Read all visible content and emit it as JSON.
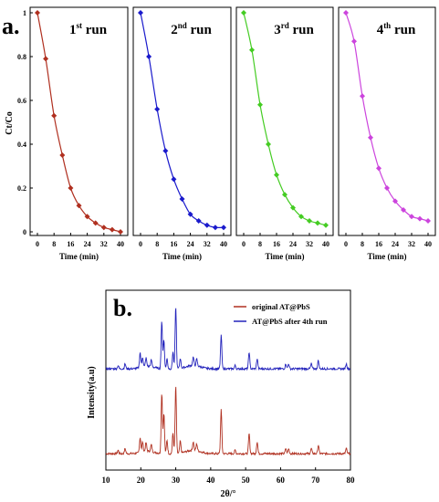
{
  "panel_a": {
    "letter": "a.",
    "ylabel": "Ct/Co",
    "xlabel": "Time (min)"
  },
  "panel_b": {
    "letter": "b.",
    "ylabel": "Intensity(a.u)",
    "xlabel": "2θ/°"
  },
  "colors": {
    "run1": "#b03020",
    "run2": "#1a1acc",
    "run3": "#44cc22",
    "run4": "#cc44dd",
    "xrd_original": "#b03020",
    "xrd_after": "#2222bb"
  },
  "chart_data": [
    {
      "type": "line",
      "title": "1st run",
      "xlabel": "Time (min)",
      "ylabel": "Ct/Co",
      "x": [
        0,
        4,
        8,
        12,
        16,
        20,
        24,
        28,
        32,
        36,
        40
      ],
      "series": [
        {
          "values": [
            1.0,
            0.79,
            0.53,
            0.35,
            0.2,
            0.12,
            0.07,
            0.04,
            0.02,
            0.01,
            0.0
          ]
        }
      ],
      "xticks": [
        0,
        8,
        16,
        24,
        32,
        40
      ],
      "yticks": [
        0,
        0.2,
        0.4,
        0.6,
        0.8,
        1
      ],
      "xlim": [
        0,
        40
      ],
      "ylim": [
        0,
        1
      ]
    },
    {
      "type": "line",
      "title": "2nd run",
      "xlabel": "Time (min)",
      "x": [
        0,
        4,
        8,
        12,
        16,
        20,
        24,
        28,
        32,
        36,
        40
      ],
      "series": [
        {
          "values": [
            1.0,
            0.8,
            0.56,
            0.37,
            0.24,
            0.15,
            0.08,
            0.05,
            0.03,
            0.02,
            0.02
          ]
        }
      ],
      "xticks": [
        0,
        8,
        16,
        24,
        32,
        40
      ],
      "xlim": [
        0,
        40
      ],
      "ylim": [
        0,
        1
      ]
    },
    {
      "type": "line",
      "title": "3rd run",
      "xlabel": "Time (min)",
      "x": [
        0,
        4,
        8,
        12,
        16,
        20,
        24,
        28,
        32,
        36,
        40
      ],
      "series": [
        {
          "values": [
            1.0,
            0.83,
            0.58,
            0.4,
            0.26,
            0.17,
            0.11,
            0.07,
            0.05,
            0.04,
            0.03
          ]
        }
      ],
      "xticks": [
        0,
        8,
        16,
        24,
        32,
        40
      ],
      "xlim": [
        0,
        40
      ],
      "ylim": [
        0,
        1
      ]
    },
    {
      "type": "line",
      "title": "4th run",
      "xlabel": "Time (min)",
      "x": [
        0,
        4,
        8,
        12,
        16,
        20,
        24,
        28,
        32,
        36,
        40
      ],
      "series": [
        {
          "values": [
            1.0,
            0.87,
            0.62,
            0.43,
            0.29,
            0.2,
            0.14,
            0.1,
            0.07,
            0.06,
            0.05
          ]
        }
      ],
      "xticks": [
        0,
        8,
        16,
        24,
        32,
        40
      ],
      "xlim": [
        0,
        40
      ],
      "ylim": [
        0,
        1
      ]
    },
    {
      "type": "line",
      "title": "",
      "xlabel": "2θ/°",
      "ylabel": "Intensity(a.u)",
      "xticks": [
        10,
        20,
        30,
        40,
        50,
        60,
        70,
        80
      ],
      "xlim": [
        10,
        80
      ],
      "legend": "top-right",
      "series": [
        {
          "name": "original AT@PbS",
          "baseline": 0.0,
          "peaks": [
            [
              13.5,
              0.02
            ],
            [
              15.5,
              0.03
            ],
            [
              19.8,
              0.09
            ],
            [
              20.5,
              0.06
            ],
            [
              21.5,
              0.05
            ],
            [
              23,
              0.04
            ],
            [
              26,
              0.36
            ],
            [
              26.6,
              0.24
            ],
            [
              27.5,
              0.08
            ],
            [
              29.2,
              0.12
            ],
            [
              30,
              0.4
            ],
            [
              31.3,
              0.07
            ],
            [
              35,
              0.05
            ],
            [
              36,
              0.04
            ],
            [
              43,
              0.26
            ],
            [
              47,
              0.02
            ],
            [
              51,
              0.12
            ],
            [
              53.3,
              0.07
            ],
            [
              61.5,
              0.03
            ],
            [
              62.3,
              0.03
            ],
            [
              68.8,
              0.03
            ],
            [
              70.8,
              0.05
            ],
            [
              78.8,
              0.03
            ]
          ]
        },
        {
          "name": "AT@PbS after 4th run",
          "baseline": 0.5,
          "peaks": [
            [
              13.5,
              0.02
            ],
            [
              15.5,
              0.03
            ],
            [
              19.8,
              0.09
            ],
            [
              20.5,
              0.06
            ],
            [
              21.5,
              0.05
            ],
            [
              23,
              0.04
            ],
            [
              26,
              0.28
            ],
            [
              26.6,
              0.17
            ],
            [
              27.5,
              0.06
            ],
            [
              29.2,
              0.1
            ],
            [
              30,
              0.37
            ],
            [
              31.3,
              0.06
            ],
            [
              35,
              0.05
            ],
            [
              36,
              0.04
            ],
            [
              43,
              0.2
            ],
            [
              47,
              0.02
            ],
            [
              51,
              0.1
            ],
            [
              53.3,
              0.06
            ],
            [
              61.5,
              0.03
            ],
            [
              62.3,
              0.03
            ],
            [
              68.8,
              0.03
            ],
            [
              70.8,
              0.05
            ],
            [
              78.8,
              0.03
            ]
          ]
        }
      ]
    }
  ]
}
